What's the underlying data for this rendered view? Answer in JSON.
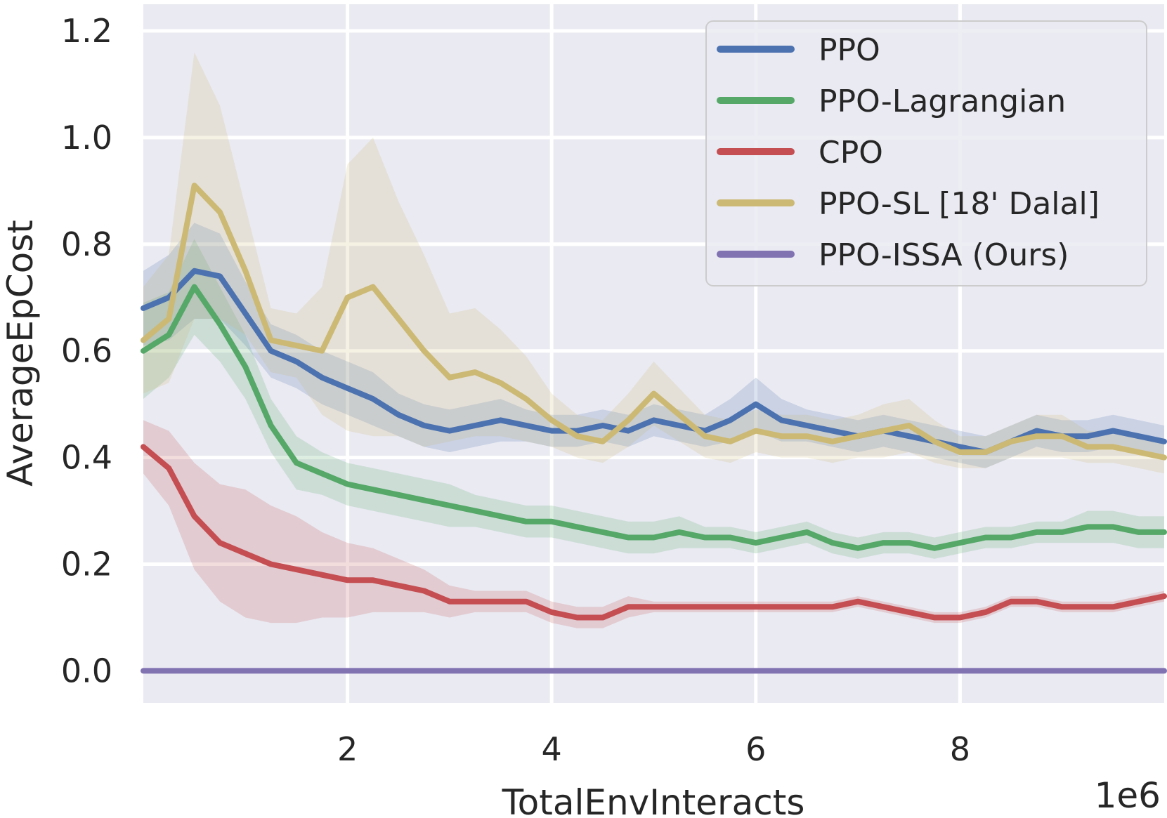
{
  "chart_data": {
    "type": "line",
    "title": "",
    "xlabel": "TotalEnvInteracts",
    "ylabel": "AverageEpCost",
    "x_multiplier_label": "1e6",
    "xlim": [
      0,
      10
    ],
    "ylim": [
      -0.06,
      1.25
    ],
    "xticks": [
      2,
      4,
      6,
      8
    ],
    "xtick_labels": [
      "2",
      "4",
      "6",
      "8"
    ],
    "yticks": [
      0.0,
      0.2,
      0.4,
      0.6,
      0.8,
      1.0,
      1.2
    ],
    "ytick_labels": [
      "0.0",
      "0.2",
      "0.4",
      "0.6",
      "0.8",
      "1.0",
      "1.2"
    ],
    "grid": true,
    "legend_position": "top-right",
    "x": [
      0.0,
      0.25,
      0.5,
      0.75,
      1.0,
      1.25,
      1.5,
      1.75,
      2.0,
      2.25,
      2.5,
      2.75,
      3.0,
      3.25,
      3.5,
      3.75,
      4.0,
      4.25,
      4.5,
      4.75,
      5.0,
      5.25,
      5.5,
      5.75,
      6.0,
      6.25,
      6.5,
      6.75,
      7.0,
      7.25,
      7.5,
      7.75,
      8.0,
      8.25,
      8.5,
      8.75,
      9.0,
      9.25,
      9.5,
      9.75,
      10.0
    ],
    "series": [
      {
        "name": "PPO",
        "color": "#4c72b0",
        "values": [
          0.68,
          0.7,
          0.75,
          0.74,
          0.67,
          0.6,
          0.58,
          0.55,
          0.53,
          0.51,
          0.48,
          0.46,
          0.45,
          0.46,
          0.47,
          0.46,
          0.45,
          0.45,
          0.46,
          0.45,
          0.47,
          0.46,
          0.45,
          0.47,
          0.5,
          0.47,
          0.46,
          0.45,
          0.44,
          0.45,
          0.44,
          0.43,
          0.42,
          0.41,
          0.43,
          0.45,
          0.44,
          0.44,
          0.45,
          0.44,
          0.43
        ],
        "band": [
          0.07,
          0.08,
          0.09,
          0.08,
          0.06,
          0.05,
          0.05,
          0.05,
          0.05,
          0.05,
          0.04,
          0.04,
          0.04,
          0.04,
          0.04,
          0.03,
          0.03,
          0.03,
          0.03,
          0.03,
          0.03,
          0.03,
          0.03,
          0.04,
          0.05,
          0.04,
          0.03,
          0.03,
          0.03,
          0.03,
          0.03,
          0.03,
          0.03,
          0.03,
          0.03,
          0.03,
          0.03,
          0.03,
          0.03,
          0.03,
          0.03
        ]
      },
      {
        "name": "PPO-Lagrangian",
        "color": "#55a868",
        "values": [
          0.6,
          0.63,
          0.72,
          0.65,
          0.57,
          0.46,
          0.39,
          0.37,
          0.35,
          0.34,
          0.33,
          0.32,
          0.31,
          0.3,
          0.29,
          0.28,
          0.28,
          0.27,
          0.26,
          0.25,
          0.25,
          0.26,
          0.25,
          0.25,
          0.24,
          0.25,
          0.26,
          0.24,
          0.23,
          0.24,
          0.24,
          0.23,
          0.24,
          0.25,
          0.25,
          0.26,
          0.26,
          0.27,
          0.27,
          0.26,
          0.26
        ],
        "band": [
          0.09,
          0.08,
          0.09,
          0.07,
          0.06,
          0.05,
          0.05,
          0.04,
          0.04,
          0.04,
          0.04,
          0.04,
          0.04,
          0.03,
          0.03,
          0.03,
          0.03,
          0.03,
          0.03,
          0.03,
          0.03,
          0.03,
          0.02,
          0.02,
          0.02,
          0.02,
          0.02,
          0.02,
          0.02,
          0.02,
          0.02,
          0.02,
          0.02,
          0.02,
          0.02,
          0.02,
          0.02,
          0.03,
          0.03,
          0.03,
          0.03
        ]
      },
      {
        "name": "CPO",
        "color": "#c44e52",
        "values": [
          0.42,
          0.38,
          0.29,
          0.24,
          0.22,
          0.2,
          0.19,
          0.18,
          0.17,
          0.17,
          0.16,
          0.15,
          0.13,
          0.13,
          0.13,
          0.13,
          0.11,
          0.1,
          0.1,
          0.12,
          0.12,
          0.12,
          0.12,
          0.12,
          0.12,
          0.12,
          0.12,
          0.12,
          0.13,
          0.12,
          0.11,
          0.1,
          0.1,
          0.11,
          0.13,
          0.13,
          0.12,
          0.12,
          0.12,
          0.13,
          0.14
        ],
        "band": [
          0.05,
          0.07,
          0.1,
          0.11,
          0.12,
          0.11,
          0.1,
          0.08,
          0.07,
          0.06,
          0.05,
          0.04,
          0.03,
          0.02,
          0.02,
          0.02,
          0.02,
          0.02,
          0.02,
          0.02,
          0.01,
          0.01,
          0.01,
          0.01,
          0.01,
          0.01,
          0.01,
          0.01,
          0.01,
          0.01,
          0.01,
          0.01,
          0.01,
          0.01,
          0.01,
          0.01,
          0.01,
          0.01,
          0.01,
          0.01,
          0.01
        ]
      },
      {
        "name": "PPO-SL [18' Dalal]",
        "color": "#ccb974",
        "values": [
          0.62,
          0.66,
          0.91,
          0.86,
          0.75,
          0.62,
          0.61,
          0.6,
          0.7,
          0.72,
          0.66,
          0.6,
          0.55,
          0.56,
          0.54,
          0.51,
          0.47,
          0.44,
          0.43,
          0.47,
          0.52,
          0.48,
          0.44,
          0.43,
          0.45,
          0.44,
          0.44,
          0.43,
          0.44,
          0.45,
          0.46,
          0.43,
          0.41,
          0.41,
          0.43,
          0.44,
          0.44,
          0.42,
          0.42,
          0.41,
          0.4
        ],
        "band": [
          0.1,
          0.12,
          0.25,
          0.2,
          0.12,
          0.06,
          0.06,
          0.12,
          0.25,
          0.28,
          0.22,
          0.18,
          0.12,
          0.12,
          0.1,
          0.08,
          0.05,
          0.04,
          0.04,
          0.05,
          0.06,
          0.05,
          0.04,
          0.04,
          0.04,
          0.04,
          0.04,
          0.04,
          0.04,
          0.05,
          0.05,
          0.04,
          0.03,
          0.03,
          0.03,
          0.04,
          0.04,
          0.03,
          0.03,
          0.03,
          0.03
        ]
      },
      {
        "name": "PPO-ISSA (Ours)",
        "color": "#8172b2",
        "values": [
          0.0,
          0.0,
          0.0,
          0.0,
          0.0,
          0.0,
          0.0,
          0.0,
          0.0,
          0.0,
          0.0,
          0.0,
          0.0,
          0.0,
          0.0,
          0.0,
          0.0,
          0.0,
          0.0,
          0.0,
          0.0,
          0.0,
          0.0,
          0.0,
          0.0,
          0.0,
          0.0,
          0.0,
          0.0,
          0.0,
          0.0,
          0.0,
          0.0,
          0.0,
          0.0,
          0.0,
          0.0,
          0.0,
          0.0,
          0.0,
          0.0
        ],
        "band": [
          0,
          0,
          0,
          0,
          0,
          0,
          0,
          0,
          0,
          0,
          0,
          0,
          0,
          0,
          0,
          0,
          0,
          0,
          0,
          0,
          0,
          0,
          0,
          0,
          0,
          0,
          0,
          0,
          0,
          0,
          0,
          0,
          0,
          0,
          0,
          0,
          0,
          0,
          0,
          0,
          0
        ]
      }
    ]
  }
}
